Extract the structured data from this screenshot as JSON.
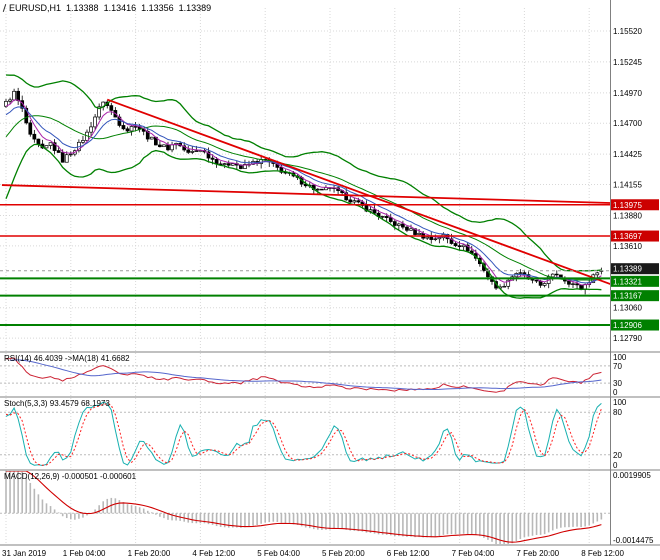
{
  "header": {
    "symbol": "EURUSD,H1",
    "open": "1.13388",
    "high": "1.13416",
    "low": "1.13356",
    "close": "1.13389"
  },
  "chart_data": {
    "type": "candlestick",
    "symbol": "EURUSD",
    "timeframe": "H1",
    "bars": 148,
    "prehistory_bars": 30,
    "price_range": [
      1.12684,
      1.15724
    ],
    "y_ticks": [
      "1.15520",
      "1.15245",
      "1.14970",
      "1.14700",
      "1.14425",
      "1.14155",
      "1.13880",
      "1.13610",
      "1.13060",
      "1.12790"
    ],
    "x_labels": [
      {
        "bar": 0,
        "label": "31 Jan 2019"
      },
      {
        "bar": 16,
        "label": "1 Feb 04:00"
      },
      {
        "bar": 32,
        "label": "1 Feb 20:00"
      },
      {
        "bar": 48,
        "label": "4 Feb 12:00"
      },
      {
        "bar": 64,
        "label": "5 Feb 04:00"
      },
      {
        "bar": 80,
        "label": "5 Feb 20:00"
      },
      {
        "bar": 96,
        "label": "6 Feb 12:00"
      },
      {
        "bar": 112,
        "label": "7 Feb 04:00"
      },
      {
        "bar": 128,
        "label": "7 Feb 20:00"
      },
      {
        "bar": 144,
        "label": "8 Feb 12:00"
      }
    ],
    "prehistory_anchors": [
      [
        -30,
        1.14
      ],
      [
        -25,
        1.138
      ],
      [
        -20,
        1.1392
      ],
      [
        -14,
        1.1442
      ],
      [
        -8,
        1.1476
      ],
      [
        -1,
        1.1486
      ]
    ],
    "close_anchors": [
      [
        0,
        1.1488
      ],
      [
        2,
        1.1497
      ],
      [
        4,
        1.1482
      ],
      [
        6,
        1.1458
      ],
      [
        9,
        1.1446
      ],
      [
        11,
        1.1452
      ],
      [
        14,
        1.1437
      ],
      [
        16,
        1.1444
      ],
      [
        18,
        1.1451
      ],
      [
        20,
        1.1461
      ],
      [
        22,
        1.1476
      ],
      [
        24,
        1.149
      ],
      [
        26,
        1.1481
      ],
      [
        28,
        1.147
      ],
      [
        30,
        1.1464
      ],
      [
        32,
        1.1469
      ],
      [
        35,
        1.1458
      ],
      [
        38,
        1.145
      ],
      [
        40,
        1.1448
      ],
      [
        42,
        1.1453
      ],
      [
        45,
        1.1443
      ],
      [
        48,
        1.1447
      ],
      [
        51,
        1.1438
      ],
      [
        54,
        1.1432
      ],
      [
        56,
        1.1436
      ],
      [
        58,
        1.143
      ],
      [
        61,
        1.1435
      ],
      [
        64,
        1.1437
      ],
      [
        67,
        1.143
      ],
      [
        70,
        1.1424
      ],
      [
        73,
        1.1418
      ],
      [
        76,
        1.1412
      ],
      [
        78,
        1.1409
      ],
      [
        80,
        1.1413
      ],
      [
        83,
        1.1406
      ],
      [
        86,
        1.14
      ],
      [
        89,
        1.1394
      ],
      [
        92,
        1.1388
      ],
      [
        95,
        1.1382
      ],
      [
        99,
        1.1376
      ],
      [
        102,
        1.1371
      ],
      [
        105,
        1.1367
      ],
      [
        108,
        1.137
      ],
      [
        110,
        1.1364
      ],
      [
        112,
        1.1362
      ],
      [
        114,
        1.1358
      ],
      [
        116,
        1.135
      ],
      [
        118,
        1.134
      ],
      [
        120,
        1.1328
      ],
      [
        122,
        1.1323
      ],
      [
        124,
        1.1331
      ],
      [
        126,
        1.1337
      ],
      [
        128,
        1.1334
      ],
      [
        130,
        1.1329
      ],
      [
        132,
        1.1326
      ],
      [
        134,
        1.1332
      ],
      [
        136,
        1.1336
      ],
      [
        138,
        1.1331
      ],
      [
        140,
        1.1327
      ],
      [
        142,
        1.1323
      ],
      [
        144,
        1.133
      ],
      [
        146,
        1.1337
      ],
      [
        147,
        1.13389
      ]
    ],
    "levels": [
      {
        "price": 1.13975,
        "label": "1.13975",
        "line_color": "#e00000",
        "line_width": 1.5,
        "badge_bg": "#cc0000"
      },
      {
        "price": 1.13697,
        "label": "1.13697",
        "line_color": "#e00000",
        "line_width": 1.5,
        "badge_bg": "#cc0000"
      },
      {
        "price": 1.13321,
        "label": "1.13321",
        "line_color": "#008000",
        "line_width": 2,
        "badge_bg": "#008000",
        "badge_dy": 3
      },
      {
        "price": 1.13167,
        "label": "1.13167",
        "line_color": "#008000",
        "line_width": 2,
        "badge_bg": "#008000"
      },
      {
        "price": 1.12906,
        "label": "1.12906",
        "line_color": "#008000",
        "line_width": 2,
        "badge_bg": "#008000"
      }
    ],
    "current_price": {
      "price": 1.13389,
      "label": "1.13389",
      "badge_bg": "#1a1a1a",
      "badge_dy": -2
    },
    "trendlines": [
      {
        "from": [
          25,
          1.1491
        ],
        "to": [
          150,
          1.1326
        ]
      },
      {
        "from": [
          -1,
          1.1415
        ],
        "to": [
          150,
          1.1399
        ]
      }
    ],
    "indicators": {
      "bollinger": {
        "period": 20,
        "deviation": 2
      },
      "ma_fast_period": 5,
      "ma_slow_period": 10,
      "rsi": {
        "label": "RSI(14) 46.4039  ->MA(18) 41.6682",
        "period": 14,
        "ma_period": 18,
        "value": 46.4039,
        "ma_value": 41.6682,
        "levels": [
          "100",
          "70",
          "30",
          "0"
        ],
        "dashed_levels": [
          70,
          30
        ],
        "range": [
          0,
          100
        ]
      },
      "stoch": {
        "label": "Stoch(5,3,3) 93.4579 68.1973",
        "k": 5,
        "d": 3,
        "slowing": 3,
        "value": 93.4579,
        "signal_value": 68.1973,
        "levels": [
          "100",
          "80",
          "20",
          "0"
        ],
        "dashed_levels": [
          80,
          20
        ],
        "range": [
          0,
          100
        ]
      },
      "macd": {
        "label": "MACD(12,26,9) -0.000501 -0.000601",
        "fast": 12,
        "slow": 26,
        "signal": 9,
        "value": -0.000501,
        "signal_value": -0.000601,
        "axis_labels": [
          "0.0019905",
          "-0.0014475"
        ],
        "range": [
          -0.0014475,
          0.0019905
        ]
      }
    }
  },
  "colors": {
    "background": "#ffffff",
    "axis_text": "#000000",
    "grid": "#d8d8d8",
    "panel_divider": "#808080",
    "bull": "#ffffff",
    "bear": "#000000",
    "candle_outline": "#000000",
    "bollinger": "#008000",
    "ma_fast": "#aa22aa",
    "ma_slow": "#3355bb",
    "trendline": "#e00000",
    "current_line": "#9a9a9a",
    "level_dash": "#bbbbbb",
    "rsi_line": "#cc2233",
    "rsi_ma": "#5566cc",
    "stoch_main": "#18b0b0",
    "stoch_signal": "#ff2020",
    "macd_hist": "#b8b8b8",
    "macd_signal": "#d00000"
  }
}
